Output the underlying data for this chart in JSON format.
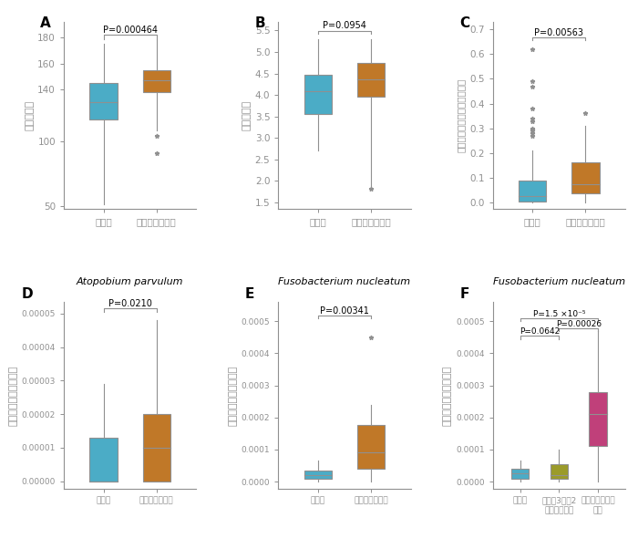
{
  "blue_color": "#4BACC6",
  "orange_color": "#C07828",
  "olive_color": "#9B9B2A",
  "pink_color": "#C0407A",
  "label_healthy": "健常者",
  "label_gastrectomy": "胃切除後の患者",
  "label_partial": "胃を約3分の2\n摘出した患者",
  "label_total": "胃を全摘出した\n患者",
  "A": {
    "ylabel": "種の豊富さ",
    "pvalue": "P=0.000464",
    "ylim": [
      48,
      192
    ],
    "yticks": [
      50,
      100,
      140,
      160,
      180
    ],
    "box1": {
      "median": 130,
      "q1": 117,
      "q3": 145,
      "whislo": 51,
      "whishi": 175,
      "fliers": []
    },
    "box2": {
      "median": 147,
      "q1": 138,
      "q3": 155,
      "whislo": 108,
      "whishi": 178,
      "fliers": [
        104,
        91
      ]
    }
  },
  "B": {
    "ylabel": "種の多様性",
    "pvalue": "P=0.0954",
    "ylim": [
      1.35,
      5.7
    ],
    "yticks": [
      1.5,
      2.0,
      2.5,
      3.0,
      3.5,
      4.0,
      4.5,
      5.0,
      5.5
    ],
    "box1": {
      "median": 4.08,
      "q1": 3.55,
      "q3": 4.47,
      "whislo": 2.7,
      "whishi": 5.3,
      "fliers": []
    },
    "box2": {
      "median": 4.37,
      "q1": 3.95,
      "q3": 4.75,
      "whislo": 1.82,
      "whishi": 5.3,
      "fliers": [
        1.82
      ]
    }
  },
  "C": {
    "ylabel": "口腔内細菌の相対的な存在量",
    "pvalue": "P=0.00563",
    "ylim": [
      -0.025,
      0.73
    ],
    "yticks": [
      0.0,
      0.1,
      0.2,
      0.3,
      0.4,
      0.5,
      0.6,
      0.7
    ],
    "box1": {
      "median": 0.025,
      "q1": 0.005,
      "q3": 0.088,
      "whislo": 0.0,
      "whishi": 0.21,
      "fliers": [
        0.27,
        0.28,
        0.29,
        0.295,
        0.3,
        0.33,
        0.34,
        0.38,
        0.47,
        0.49,
        0.62
      ]
    },
    "box2": {
      "median": 0.072,
      "q1": 0.038,
      "q3": 0.163,
      "whislo": 0.0,
      "whishi": 0.31,
      "fliers": [
        0.36
      ]
    }
  },
  "D": {
    "title_italic": "Atopobium parvulum",
    "ylabel": "便中の相対的な存在量",
    "pvalue": "P=0.0210",
    "ylim": [
      -2.2e-06,
      5.35e-05
    ],
    "yticks": [
      0.0,
      1e-05,
      2e-05,
      3e-05,
      4e-05,
      5e-05
    ],
    "box1": {
      "median": 0.0,
      "q1": 0.0,
      "q3": 1.3e-05,
      "whislo": 0.0,
      "whishi": 2.9e-05,
      "fliers": []
    },
    "box2": {
      "median": 1e-05,
      "q1": 0.0,
      "q3": 2e-05,
      "whislo": 0.0,
      "whishi": 4.8e-05,
      "fliers": []
    }
  },
  "E": {
    "title_italic": "Fusobacterium nucleatum",
    "ylabel": "便中の相対的な存在量",
    "pvalue": "P=0.00341",
    "ylim": [
      -2.2e-05,
      0.00056
    ],
    "yticks": [
      0.0,
      0.0001,
      0.0002,
      0.0003,
      0.0004,
      0.0005
    ],
    "box1": {
      "median": 2e-05,
      "q1": 1e-05,
      "q3": 3.5e-05,
      "whislo": 0.0,
      "whishi": 6.5e-05,
      "fliers": []
    },
    "box2": {
      "median": 9e-05,
      "q1": 4e-05,
      "q3": 0.000175,
      "whislo": 0.0,
      "whishi": 0.00024,
      "fliers": [
        0.00045
      ]
    }
  },
  "F": {
    "title_italic": "Fusobacterium nucleatum",
    "ylabel": "便中の相対的な存在量",
    "pvalue1": "P=1.5 ×10⁻⁵",
    "pvalue2": "P=0.0642",
    "pvalue3": "P=0.00026",
    "ylim": [
      -2.2e-05,
      0.00056
    ],
    "yticks": [
      0.0,
      0.0001,
      0.0002,
      0.0003,
      0.0004,
      0.0005
    ],
    "box1": {
      "median": 2.5e-05,
      "q1": 1e-05,
      "q3": 4e-05,
      "whislo": 0.0,
      "whishi": 6.5e-05,
      "fliers": []
    },
    "box2": {
      "median": 2e-05,
      "q1": 1e-05,
      "q3": 5.5e-05,
      "whislo": 0.0,
      "whishi": 0.0001,
      "fliers": []
    },
    "box3": {
      "median": 0.00021,
      "q1": 0.00011,
      "q3": 0.00028,
      "whislo": 0.0,
      "whishi": 0.00047,
      "fliers": []
    }
  }
}
